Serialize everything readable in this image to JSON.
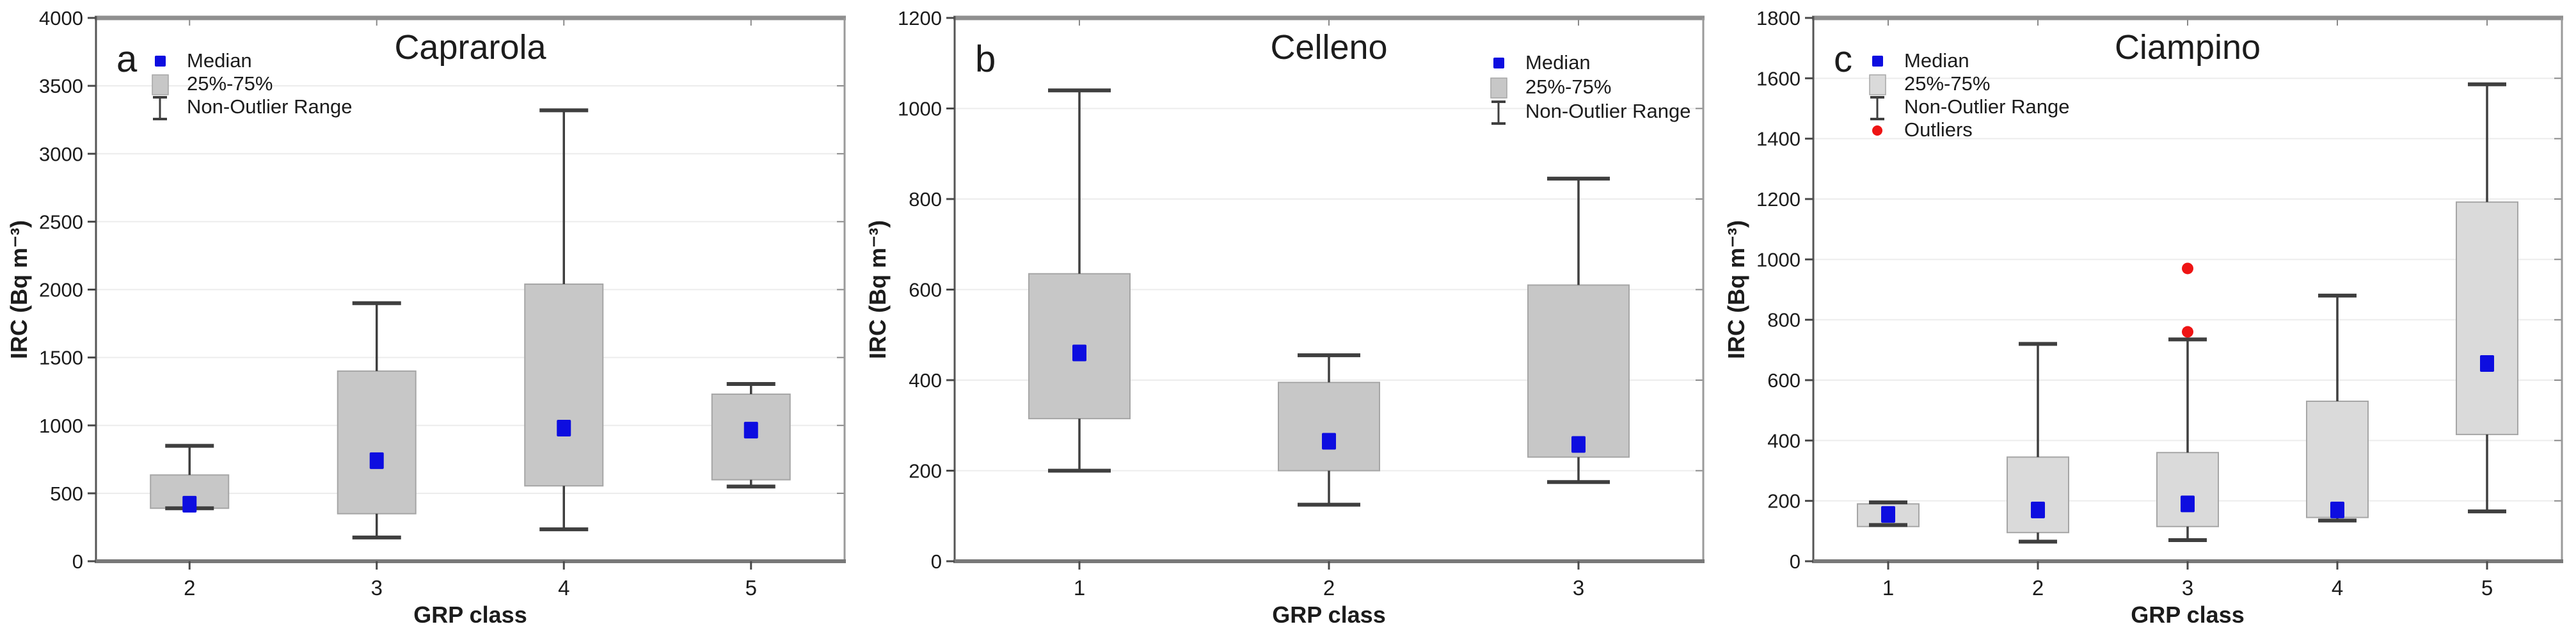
{
  "figure": {
    "xlabel": "GRP class",
    "ylabel": "IRC (Bq m⁻³)",
    "colors": {
      "median": "#0d0de0",
      "outlier": "#ee1414",
      "whisker": "#3f3f3f",
      "grid": "#ececec",
      "frame": "#8f8f8f",
      "axis": "#4a4a4a",
      "text": "#1c1c1c"
    },
    "legend_labels": {
      "median": "Median",
      "iqr": "25%-75%",
      "range": "Non-Outlier Range",
      "outliers": "Outliers"
    }
  },
  "chart_data": [
    {
      "type": "box",
      "panel_label": "a",
      "title": "Caprarola",
      "xlabel": "GRP class",
      "ylabel": "IRC (Bq m⁻³)",
      "ylim": [
        0,
        4000
      ],
      "ytick_step": 500,
      "grid": true,
      "legend": [
        "Median",
        "25%-75%",
        "Non-Outlier Range"
      ],
      "legend_position": "top-left",
      "box_fill": "#c7c7c7",
      "categories": [
        "2",
        "3",
        "4",
        "5"
      ],
      "boxes": [
        {
          "category": "2",
          "whisker_low": 390,
          "q1": 390,
          "median": 420,
          "q3": 635,
          "whisker_high": 850,
          "outliers": []
        },
        {
          "category": "3",
          "whisker_low": 175,
          "q1": 350,
          "median": 740,
          "q3": 1400,
          "whisker_high": 1900,
          "outliers": []
        },
        {
          "category": "4",
          "whisker_low": 235,
          "q1": 555,
          "median": 980,
          "q3": 2040,
          "whisker_high": 3320,
          "outliers": []
        },
        {
          "category": "5",
          "whisker_low": 550,
          "q1": 600,
          "median": 965,
          "q3": 1230,
          "whisker_high": 1305,
          "outliers": []
        }
      ]
    },
    {
      "type": "box",
      "panel_label": "b",
      "title": "Celleno",
      "xlabel": "GRP class",
      "ylabel": "IRC (Bq m⁻³)",
      "ylim": [
        0,
        1200
      ],
      "ytick_step": 200,
      "grid": true,
      "legend": [
        "Median",
        "25%-75%",
        "Non-Outlier Range"
      ],
      "legend_position": "top-right",
      "box_fill": "#c7c7c7",
      "categories": [
        "1",
        "2",
        "3"
      ],
      "boxes": [
        {
          "category": "1",
          "whisker_low": 200,
          "q1": 315,
          "median": 460,
          "q3": 635,
          "whisker_high": 1040,
          "outliers": []
        },
        {
          "category": "2",
          "whisker_low": 125,
          "q1": 200,
          "median": 265,
          "q3": 395,
          "whisker_high": 455,
          "outliers": []
        },
        {
          "category": "3",
          "whisker_low": 175,
          "q1": 230,
          "median": 258,
          "q3": 610,
          "whisker_high": 845,
          "outliers": []
        }
      ]
    },
    {
      "type": "box",
      "panel_label": "c",
      "title": "Ciampino",
      "xlabel": "GRP class",
      "ylabel": "IRC (Bq m⁻³)",
      "ylim": [
        0,
        1800
      ],
      "ytick_step": 200,
      "grid": true,
      "legend": [
        "Median",
        "25%-75%",
        "Non-Outlier Range",
        "Outliers"
      ],
      "legend_position": "top-left",
      "box_fill": "#dadada",
      "categories": [
        "1",
        "2",
        "3",
        "4",
        "5"
      ],
      "boxes": [
        {
          "category": "1",
          "whisker_low": 120,
          "q1": 115,
          "median": 155,
          "q3": 190,
          "whisker_high": 195,
          "outliers": []
        },
        {
          "category": "2",
          "whisker_low": 65,
          "q1": 95,
          "median": 170,
          "q3": 345,
          "whisker_high": 720,
          "outliers": []
        },
        {
          "category": "3",
          "whisker_low": 70,
          "q1": 115,
          "median": 190,
          "q3": 360,
          "whisker_high": 735,
          "outliers": [
            760,
            970
          ]
        },
        {
          "category": "4",
          "whisker_low": 135,
          "q1": 145,
          "median": 170,
          "q3": 530,
          "whisker_high": 880,
          "outliers": []
        },
        {
          "category": "5",
          "whisker_low": 165,
          "q1": 420,
          "median": 655,
          "q3": 1190,
          "whisker_high": 1580,
          "outliers": []
        }
      ]
    }
  ]
}
